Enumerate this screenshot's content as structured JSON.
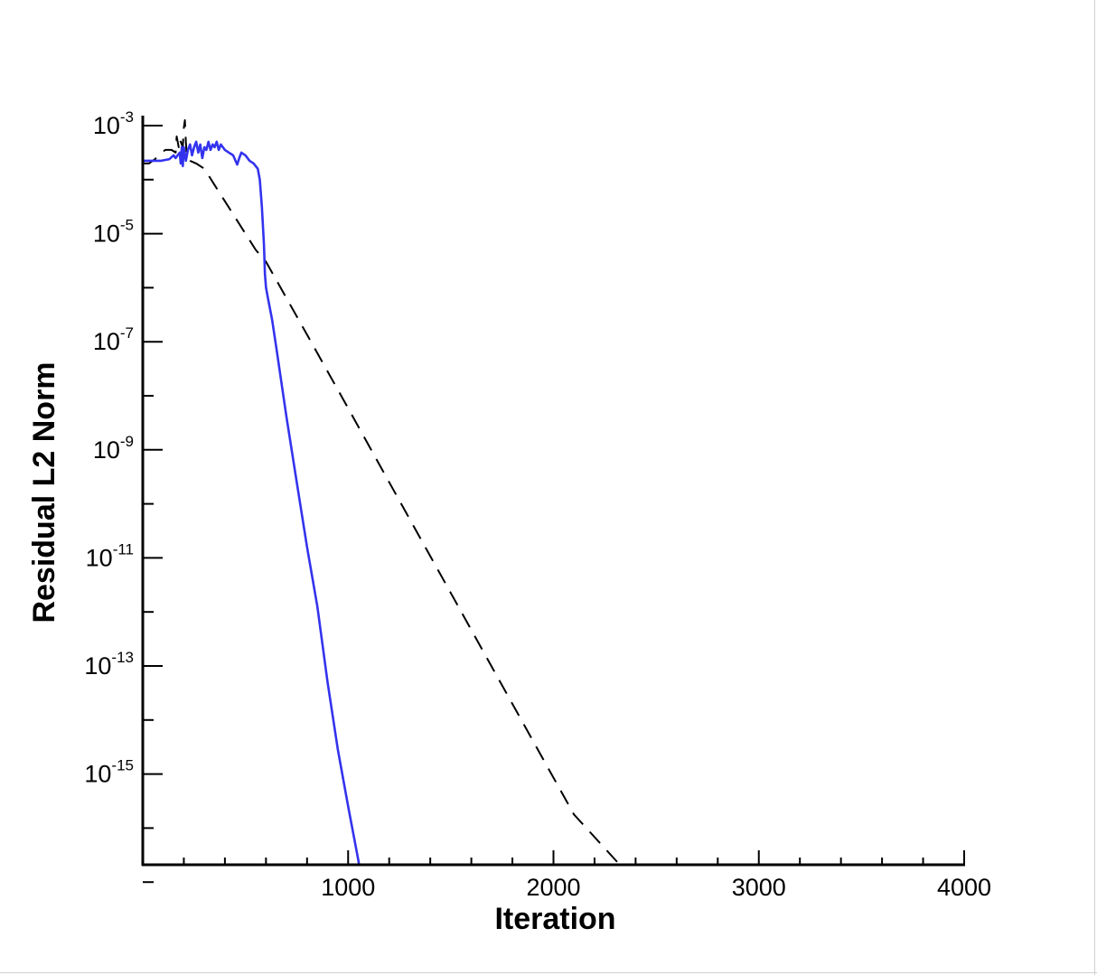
{
  "chart_data": {
    "type": "line",
    "title": "",
    "xlabel": "Iteration",
    "ylabel": "Residual L2 Norm",
    "xlim": [
      0,
      4000
    ],
    "ylim_log10": [
      -17.7,
      -2.95
    ],
    "y_scale": "log",
    "grid": false,
    "x_ticks": [
      {
        "value": 1000,
        "label": "1000"
      },
      {
        "value": 2000,
        "label": "2000"
      },
      {
        "value": 3000,
        "label": "3000"
      },
      {
        "value": 4000,
        "label": "4000"
      }
    ],
    "y_ticks": [
      {
        "value": -3,
        "base": "10",
        "exp": "-3"
      },
      {
        "value": -5,
        "base": "10",
        "exp": "-5"
      },
      {
        "value": -7,
        "base": "10",
        "exp": "-7"
      },
      {
        "value": -9,
        "base": "10",
        "exp": "-9"
      },
      {
        "value": -11,
        "base": "10",
        "exp": "-11"
      },
      {
        "value": -13,
        "base": "10",
        "exp": "-13"
      },
      {
        "value": -15,
        "base": "10",
        "exp": "-15"
      }
    ],
    "series": [
      {
        "color": "#000000",
        "dash": "dashed",
        "log10_points": [
          [
            0,
            -3.7
          ],
          [
            30,
            -3.7
          ],
          [
            60,
            -3.62
          ],
          [
            90,
            -3.5
          ],
          [
            110,
            -3.45
          ],
          [
            140,
            -3.45
          ],
          [
            160,
            -3.5
          ],
          [
            165,
            -3.2
          ],
          [
            175,
            -3.4
          ],
          [
            180,
            -3.25
          ],
          [
            195,
            -3.4
          ],
          [
            200,
            -3.05
          ],
          [
            205,
            -2.9
          ],
          [
            210,
            -3.3
          ],
          [
            215,
            -3.6
          ],
          [
            230,
            -3.65
          ],
          [
            260,
            -3.7
          ],
          [
            300,
            -3.8
          ],
          [
            350,
            -4.1
          ],
          [
            400,
            -4.4
          ],
          [
            450,
            -4.7
          ],
          [
            500,
            -5.0
          ],
          [
            550,
            -5.3
          ],
          [
            600,
            -5.52
          ],
          [
            800,
            -6.87
          ],
          [
            1000,
            -8.23
          ],
          [
            1200,
            -9.6
          ],
          [
            1500,
            -11.65
          ],
          [
            1800,
            -13.7
          ],
          [
            2100,
            -15.75
          ],
          [
            2400,
            -17.0
          ],
          [
            2600,
            -17.3
          ],
          [
            2900,
            -17.55
          ],
          [
            3000,
            -17.62
          ],
          [
            3080,
            -17.66
          ],
          [
            3150,
            -17.66
          ],
          [
            3300,
            -17.68
          ],
          [
            3600,
            -17.66
          ],
          [
            4000,
            -17.66
          ]
        ]
      },
      {
        "color": "#3333ee",
        "dash": "solid",
        "log10_points": [
          [
            0,
            -3.65
          ],
          [
            90,
            -3.65
          ],
          [
            130,
            -3.62
          ],
          [
            150,
            -3.55
          ],
          [
            160,
            -3.6
          ],
          [
            170,
            -3.55
          ],
          [
            180,
            -3.5
          ],
          [
            185,
            -3.7
          ],
          [
            190,
            -3.4
          ],
          [
            195,
            -3.75
          ],
          [
            200,
            -3.4
          ],
          [
            210,
            -3.65
          ],
          [
            220,
            -3.45
          ],
          [
            230,
            -3.35
          ],
          [
            240,
            -3.55
          ],
          [
            250,
            -3.4
          ],
          [
            260,
            -3.3
          ],
          [
            270,
            -3.5
          ],
          [
            280,
            -3.35
          ],
          [
            290,
            -3.6
          ],
          [
            300,
            -3.4
          ],
          [
            310,
            -3.45
          ],
          [
            320,
            -3.3
          ],
          [
            330,
            -3.45
          ],
          [
            340,
            -3.35
          ],
          [
            350,
            -3.4
          ],
          [
            360,
            -3.3
          ],
          [
            370,
            -3.45
          ],
          [
            380,
            -3.35
          ],
          [
            390,
            -3.4
          ],
          [
            400,
            -3.45
          ],
          [
            420,
            -3.5
          ],
          [
            440,
            -3.55
          ],
          [
            460,
            -3.72
          ],
          [
            470,
            -3.6
          ],
          [
            480,
            -3.5
          ],
          [
            500,
            -3.55
          ],
          [
            520,
            -3.65
          ],
          [
            540,
            -3.7
          ],
          [
            560,
            -3.8
          ],
          [
            570,
            -4.0
          ],
          [
            580,
            -4.5
          ],
          [
            590,
            -5.2
          ],
          [
            595,
            -5.75
          ],
          [
            600,
            -6.0
          ],
          [
            610,
            -6.2
          ],
          [
            630,
            -6.6
          ],
          [
            650,
            -7.1
          ],
          [
            700,
            -8.4
          ],
          [
            750,
            -9.6
          ],
          [
            800,
            -10.8
          ],
          [
            850,
            -11.9
          ],
          [
            900,
            -13.3
          ],
          [
            950,
            -14.55
          ],
          [
            1000,
            -15.6
          ],
          [
            1050,
            -16.6
          ],
          [
            1080,
            -17.35
          ],
          [
            1100,
            -17.55
          ],
          [
            1130,
            -17.63
          ],
          [
            1200,
            -17.63
          ],
          [
            1500,
            -17.63
          ],
          [
            2000,
            -17.63
          ]
        ]
      }
    ]
  }
}
